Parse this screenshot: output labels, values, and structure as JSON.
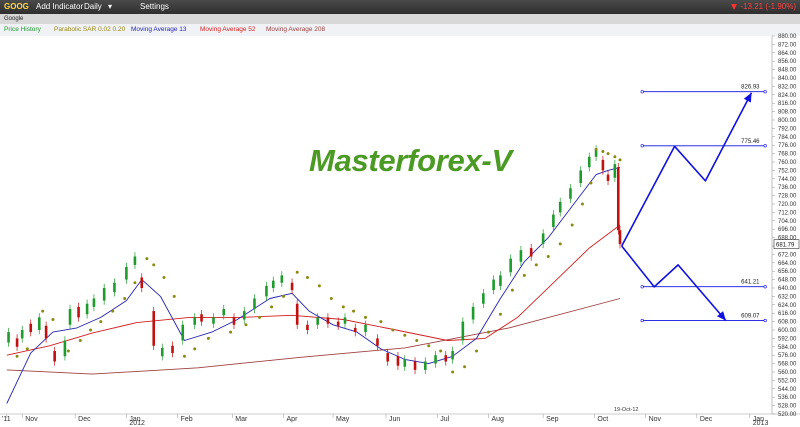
{
  "toolbar": {
    "symbol": "GOOG",
    "add_indicator": "Add Indicator",
    "interval": "Daily",
    "settings": "Settings",
    "change": "-13.21 (-1.90%)",
    "company": "Google"
  },
  "chart_data": {
    "type": "line",
    "title": "Masterforex-V",
    "legend": [
      {
        "label": "Price History",
        "color": "#1f9b2d"
      },
      {
        "label": "Parabolic SAR 0.02 0.20",
        "color": "#9a8a10"
      },
      {
        "label": "Moving Average 13",
        "color": "#2424b0"
      },
      {
        "label": "Moving Average 52",
        "color": "#d02020"
      },
      {
        "label": "Moving Average 208",
        "color": "#a04040"
      }
    ],
    "ylim": [
      520,
      880
    ],
    "y_ticks": [
      520,
      528,
      536,
      544,
      552,
      560,
      568,
      576,
      584,
      592,
      600,
      608,
      616,
      624,
      632,
      640,
      648,
      656,
      664,
      672,
      680,
      688,
      696,
      704,
      712,
      720,
      728,
      736,
      744,
      752,
      760,
      768,
      776,
      784,
      792,
      800,
      808,
      816,
      824,
      832,
      840,
      848,
      856,
      864,
      872,
      880
    ],
    "x_labels": [
      {
        "label": "'11",
        "date": "2011-10-26"
      },
      {
        "label": "Nov",
        "date": "2011-11-04"
      },
      {
        "label": "Dec",
        "date": "2011-12-05"
      },
      {
        "label": "Jan",
        "date": "2012-01-04"
      },
      {
        "label": "2012",
        "date": "2012-01-04"
      },
      {
        "label": "Feb",
        "date": "2012-02-03"
      },
      {
        "label": "Mar",
        "date": "2012-03-06"
      },
      {
        "label": "Apr",
        "date": "2012-04-05"
      },
      {
        "label": "May",
        "date": "2012-05-04"
      },
      {
        "label": "Jun",
        "date": "2012-06-04"
      },
      {
        "label": "Jul",
        "date": "2012-07-04"
      },
      {
        "label": "Aug",
        "date": "2012-08-03"
      },
      {
        "label": "Sep",
        "date": "2012-09-04"
      },
      {
        "label": "Oct",
        "date": "2012-10-04"
      },
      {
        "label": "19-Oct-12",
        "date": "2012-10-19"
      },
      {
        "label": "Nov",
        "date": "2012-11-03"
      },
      {
        "label": "Dec",
        "date": "2012-12-03"
      },
      {
        "label": "Jan",
        "date": "2013-01-03"
      },
      {
        "label": "2013",
        "date": "2013-01-03"
      }
    ],
    "price_path": [
      {
        "date": "2011-10-26",
        "price": 592
      },
      {
        "date": "2011-11-04",
        "price": 598
      },
      {
        "date": "2011-11-15",
        "price": 612
      },
      {
        "date": "2011-11-25",
        "price": 570
      },
      {
        "date": "2011-12-06",
        "price": 615
      },
      {
        "date": "2011-12-16",
        "price": 625
      },
      {
        "date": "2011-12-28",
        "price": 640
      },
      {
        "date": "2012-01-06",
        "price": 660
      },
      {
        "date": "2012-01-12",
        "price": 652
      },
      {
        "date": "2012-01-20",
        "price": 585
      },
      {
        "date": "2012-02-01",
        "price": 582
      },
      {
        "date": "2012-02-14",
        "price": 608
      },
      {
        "date": "2012-03-05",
        "price": 615
      },
      {
        "date": "2012-03-20",
        "price": 630
      },
      {
        "date": "2012-04-03",
        "price": 645
      },
      {
        "date": "2012-04-13",
        "price": 605
      },
      {
        "date": "2012-04-24",
        "price": 612
      },
      {
        "date": "2012-05-07",
        "price": 605
      },
      {
        "date": "2012-05-22",
        "price": 595
      },
      {
        "date": "2012-06-04",
        "price": 570
      },
      {
        "date": "2012-06-15",
        "price": 568
      },
      {
        "date": "2012-06-26",
        "price": 570
      },
      {
        "date": "2012-07-10",
        "price": 578
      },
      {
        "date": "2012-07-19",
        "price": 608
      },
      {
        "date": "2012-07-31",
        "price": 632
      },
      {
        "date": "2012-08-14",
        "price": 665
      },
      {
        "date": "2012-08-24",
        "price": 675
      },
      {
        "date": "2012-09-06",
        "price": 700
      },
      {
        "date": "2012-09-18",
        "price": 730
      },
      {
        "date": "2012-09-28",
        "price": 755
      },
      {
        "date": "2012-10-05",
        "price": 770
      },
      {
        "date": "2012-10-12",
        "price": 752
      },
      {
        "date": "2012-10-17",
        "price": 758
      },
      {
        "date": "2012-10-18",
        "price": 695
      },
      {
        "date": "2012-10-19",
        "price": 681.79
      }
    ],
    "ma13": [
      {
        "date": "2011-10-26",
        "price": 530
      },
      {
        "date": "2011-11-09",
        "price": 578
      },
      {
        "date": "2011-11-22",
        "price": 598
      },
      {
        "date": "2011-12-06",
        "price": 602
      },
      {
        "date": "2011-12-20",
        "price": 612
      },
      {
        "date": "2012-01-04",
        "price": 628
      },
      {
        "date": "2012-01-13",
        "price": 648
      },
      {
        "date": "2012-01-24",
        "price": 632
      },
      {
        "date": "2012-02-07",
        "price": 590
      },
      {
        "date": "2012-02-23",
        "price": 598
      },
      {
        "date": "2012-03-09",
        "price": 610
      },
      {
        "date": "2012-03-28",
        "price": 630
      },
      {
        "date": "2012-04-10",
        "price": 635
      },
      {
        "date": "2012-04-20",
        "price": 618
      },
      {
        "date": "2012-05-04",
        "price": 605
      },
      {
        "date": "2012-05-18",
        "price": 598
      },
      {
        "date": "2012-06-01",
        "price": 582
      },
      {
        "date": "2012-06-15",
        "price": 572
      },
      {
        "date": "2012-06-29",
        "price": 568
      },
      {
        "date": "2012-07-13",
        "price": 575
      },
      {
        "date": "2012-07-27",
        "price": 592
      },
      {
        "date": "2012-08-10",
        "price": 630
      },
      {
        "date": "2012-08-24",
        "price": 665
      },
      {
        "date": "2012-09-07",
        "price": 688
      },
      {
        "date": "2012-09-21",
        "price": 718
      },
      {
        "date": "2012-10-05",
        "price": 748
      },
      {
        "date": "2012-10-12",
        "price": 752
      },
      {
        "date": "2012-10-19",
        "price": 755
      }
    ],
    "ma52": [
      {
        "date": "2011-10-26",
        "price": 576
      },
      {
        "date": "2011-11-20",
        "price": 585
      },
      {
        "date": "2011-12-15",
        "price": 597
      },
      {
        "date": "2012-01-10",
        "price": 607
      },
      {
        "date": "2012-02-10",
        "price": 612
      },
      {
        "date": "2012-03-10",
        "price": 612
      },
      {
        "date": "2012-04-10",
        "price": 614
      },
      {
        "date": "2012-05-10",
        "price": 610
      },
      {
        "date": "2012-06-10",
        "price": 600
      },
      {
        "date": "2012-07-10",
        "price": 590
      },
      {
        "date": "2012-08-01",
        "price": 592
      },
      {
        "date": "2012-08-20",
        "price": 612
      },
      {
        "date": "2012-09-10",
        "price": 645
      },
      {
        "date": "2012-10-01",
        "price": 678
      },
      {
        "date": "2012-10-19",
        "price": 700
      }
    ],
    "ma208": [
      {
        "date": "2011-10-26",
        "price": 562
      },
      {
        "date": "2011-12-15",
        "price": 558
      },
      {
        "date": "2012-02-15",
        "price": 564
      },
      {
        "date": "2012-04-15",
        "price": 574
      },
      {
        "date": "2012-06-15",
        "price": 583
      },
      {
        "date": "2012-08-15",
        "price": 602
      },
      {
        "date": "2012-10-19",
        "price": 630
      }
    ],
    "candles": [
      {
        "date": "2011-10-27",
        "open": 588,
        "close": 598
      },
      {
        "date": "2011-11-01",
        "open": 592,
        "close": 584
      },
      {
        "date": "2011-11-04",
        "open": 592,
        "close": 600
      },
      {
        "date": "2011-11-09",
        "open": 606,
        "close": 598
      },
      {
        "date": "2011-11-14",
        "open": 600,
        "close": 612
      },
      {
        "date": "2011-11-18",
        "open": 604,
        "close": 592
      },
      {
        "date": "2011-11-23",
        "open": 580,
        "close": 570
      },
      {
        "date": "2011-11-29",
        "open": 575,
        "close": 590
      },
      {
        "date": "2011-12-02",
        "open": 605,
        "close": 620
      },
      {
        "date": "2011-12-07",
        "open": 622,
        "close": 612
      },
      {
        "date": "2011-12-12",
        "open": 615,
        "close": 625
      },
      {
        "date": "2011-12-16",
        "open": 622,
        "close": 630
      },
      {
        "date": "2011-12-22",
        "open": 628,
        "close": 640
      },
      {
        "date": "2011-12-28",
        "open": 636,
        "close": 645
      },
      {
        "date": "2012-01-04",
        "open": 648,
        "close": 660
      },
      {
        "date": "2012-01-09",
        "open": 662,
        "close": 670
      },
      {
        "date": "2012-01-13",
        "open": 650,
        "close": 640
      },
      {
        "date": "2012-01-20",
        "open": 618,
        "close": 585
      },
      {
        "date": "2012-01-25",
        "open": 575,
        "close": 583
      },
      {
        "date": "2012-01-31",
        "open": 585,
        "close": 578
      },
      {
        "date": "2012-02-06",
        "open": 590,
        "close": 605
      },
      {
        "date": "2012-02-13",
        "open": 605,
        "close": 612
      },
      {
        "date": "2012-02-17",
        "open": 615,
        "close": 608
      },
      {
        "date": "2012-02-24",
        "open": 606,
        "close": 612
      },
      {
        "date": "2012-03-01",
        "open": 614,
        "close": 620
      },
      {
        "date": "2012-03-07",
        "open": 612,
        "close": 605
      },
      {
        "date": "2012-03-13",
        "open": 610,
        "close": 618
      },
      {
        "date": "2012-03-19",
        "open": 620,
        "close": 630
      },
      {
        "date": "2012-03-26",
        "open": 632,
        "close": 642
      },
      {
        "date": "2012-03-30",
        "open": 640,
        "close": 647
      },
      {
        "date": "2012-04-04",
        "open": 645,
        "close": 652
      },
      {
        "date": "2012-04-10",
        "open": 645,
        "close": 638
      },
      {
        "date": "2012-04-13",
        "open": 625,
        "close": 605
      },
      {
        "date": "2012-04-19",
        "open": 605,
        "close": 600
      },
      {
        "date": "2012-04-25",
        "open": 605,
        "close": 612
      },
      {
        "date": "2012-05-01",
        "open": 612,
        "close": 606
      },
      {
        "date": "2012-05-07",
        "open": 608,
        "close": 604
      },
      {
        "date": "2012-05-11",
        "open": 606,
        "close": 612
      },
      {
        "date": "2012-05-17",
        "open": 602,
        "close": 598
      },
      {
        "date": "2012-05-23",
        "open": 598,
        "close": 605
      },
      {
        "date": "2012-05-30",
        "open": 592,
        "close": 585
      },
      {
        "date": "2012-06-05",
        "open": 578,
        "close": 570
      },
      {
        "date": "2012-06-11",
        "open": 575,
        "close": 566
      },
      {
        "date": "2012-06-15",
        "open": 565,
        "close": 572
      },
      {
        "date": "2012-06-21",
        "open": 570,
        "close": 562
      },
      {
        "date": "2012-06-27",
        "open": 562,
        "close": 570
      },
      {
        "date": "2012-07-03",
        "open": 568,
        "close": 576
      },
      {
        "date": "2012-07-09",
        "open": 576,
        "close": 570
      },
      {
        "date": "2012-07-13",
        "open": 572,
        "close": 580
      },
      {
        "date": "2012-07-19",
        "open": 590,
        "close": 608
      },
      {
        "date": "2012-07-25",
        "open": 610,
        "close": 622
      },
      {
        "date": "2012-07-31",
        "open": 625,
        "close": 635
      },
      {
        "date": "2012-08-06",
        "open": 638,
        "close": 648
      },
      {
        "date": "2012-08-10",
        "open": 642,
        "close": 652
      },
      {
        "date": "2012-08-16",
        "open": 655,
        "close": 668
      },
      {
        "date": "2012-08-22",
        "open": 665,
        "close": 676
      },
      {
        "date": "2012-08-28",
        "open": 678,
        "close": 670
      },
      {
        "date": "2012-09-04",
        "open": 682,
        "close": 692
      },
      {
        "date": "2012-09-10",
        "open": 698,
        "close": 710
      },
      {
        "date": "2012-09-14",
        "open": 712,
        "close": 722
      },
      {
        "date": "2012-09-20",
        "open": 725,
        "close": 735
      },
      {
        "date": "2012-09-26",
        "open": 740,
        "close": 752
      },
      {
        "date": "2012-10-01",
        "open": 755,
        "close": 765
      },
      {
        "date": "2012-10-05",
        "open": 765,
        "close": 772
      },
      {
        "date": "2012-10-09",
        "open": 762,
        "close": 752
      },
      {
        "date": "2012-10-12",
        "open": 748,
        "close": 742
      },
      {
        "date": "2012-10-16",
        "open": 745,
        "close": 758
      },
      {
        "date": "2012-10-18",
        "open": 755,
        "close": 695
      },
      {
        "date": "2012-10-19",
        "open": 695,
        "close": 681.79
      }
    ],
    "sar": [
      {
        "date": "2011-11-01",
        "value": 575
      },
      {
        "date": "2011-11-07",
        "value": 582
      },
      {
        "date": "2011-11-16",
        "value": 618
      },
      {
        "date": "2011-11-22",
        "value": 610
      },
      {
        "date": "2011-12-01",
        "value": 580
      },
      {
        "date": "2011-12-08",
        "value": 590
      },
      {
        "date": "2011-12-14",
        "value": 600
      },
      {
        "date": "2011-12-20",
        "value": 608
      },
      {
        "date": "2011-12-27",
        "value": 618
      },
      {
        "date": "2012-01-03",
        "value": 630
      },
      {
        "date": "2012-01-09",
        "value": 645
      },
      {
        "date": "2012-01-16",
        "value": 668
      },
      {
        "date": "2012-01-20",
        "value": 662
      },
      {
        "date": "2012-01-26",
        "value": 650
      },
      {
        "date": "2012-02-01",
        "value": 632
      },
      {
        "date": "2012-02-07",
        "value": 575
      },
      {
        "date": "2012-02-13",
        "value": 582
      },
      {
        "date": "2012-02-21",
        "value": 592
      },
      {
        "date": "2012-03-05",
        "value": 598
      },
      {
        "date": "2012-03-14",
        "value": 605
      },
      {
        "date": "2012-03-22",
        "value": 612
      },
      {
        "date": "2012-03-29",
        "value": 622
      },
      {
        "date": "2012-04-05",
        "value": 632
      },
      {
        "date": "2012-04-13",
        "value": 655
      },
      {
        "date": "2012-04-19",
        "value": 650
      },
      {
        "date": "2012-04-26",
        "value": 642
      },
      {
        "date": "2012-05-03",
        "value": 630
      },
      {
        "date": "2012-05-10",
        "value": 622
      },
      {
        "date": "2012-05-16",
        "value": 618
      },
      {
        "date": "2012-05-23",
        "value": 612
      },
      {
        "date": "2012-06-01",
        "value": 608
      },
      {
        "date": "2012-06-08",
        "value": 600
      },
      {
        "date": "2012-06-15",
        "value": 595
      },
      {
        "date": "2012-06-22",
        "value": 590
      },
      {
        "date": "2012-06-29",
        "value": 585
      },
      {
        "date": "2012-07-06",
        "value": 580
      },
      {
        "date": "2012-07-13",
        "value": 560
      },
      {
        "date": "2012-07-20",
        "value": 565
      },
      {
        "date": "2012-07-27",
        "value": 580
      },
      {
        "date": "2012-08-03",
        "value": 598
      },
      {
        "date": "2012-08-10",
        "value": 615
      },
      {
        "date": "2012-08-17",
        "value": 638
      },
      {
        "date": "2012-08-24",
        "value": 652
      },
      {
        "date": "2012-08-31",
        "value": 662
      },
      {
        "date": "2012-09-07",
        "value": 670
      },
      {
        "date": "2012-09-14",
        "value": 682
      },
      {
        "date": "2012-09-21",
        "value": 700
      },
      {
        "date": "2012-09-27",
        "value": 720
      },
      {
        "date": "2012-10-02",
        "value": 740
      },
      {
        "date": "2012-10-05",
        "value": 772
      },
      {
        "date": "2012-10-09",
        "value": 770
      },
      {
        "date": "2012-10-12",
        "value": 768
      },
      {
        "date": "2012-10-16",
        "value": 765
      },
      {
        "date": "2012-10-19",
        "value": 762
      }
    ],
    "projection": {
      "levels": [
        {
          "label": "826.93",
          "value": 826.93
        },
        {
          "label": "775.46",
          "value": 775.46
        },
        {
          "label": "641.21",
          "value": 641.21
        },
        {
          "label": "609.07",
          "value": 609.07
        }
      ],
      "level_start_date": "2012-11-01",
      "level_end_date": "2013-01-12",
      "up_path": [
        {
          "date": "2012-10-20",
          "price": 680
        },
        {
          "date": "2012-11-20",
          "price": 775
        },
        {
          "date": "2012-12-08",
          "price": 742
        },
        {
          "date": "2013-01-04",
          "price": 826
        }
      ],
      "down_path": [
        {
          "date": "2012-10-20",
          "price": 680
        },
        {
          "date": "2012-11-08",
          "price": 641
        },
        {
          "date": "2012-11-22",
          "price": 662
        },
        {
          "date": "2012-12-20",
          "price": 609
        }
      ],
      "color": "#1010e0"
    },
    "last_price": {
      "label": "681.79",
      "value": 681.79
    },
    "colors": {
      "up_bar": "#1f9b2d",
      "down_bar": "#c01010",
      "sar": "#8a8a10",
      "ma13": "#2424b0",
      "ma52": "#d02020",
      "ma208": "#a04040",
      "axis_text": "#333333"
    }
  }
}
